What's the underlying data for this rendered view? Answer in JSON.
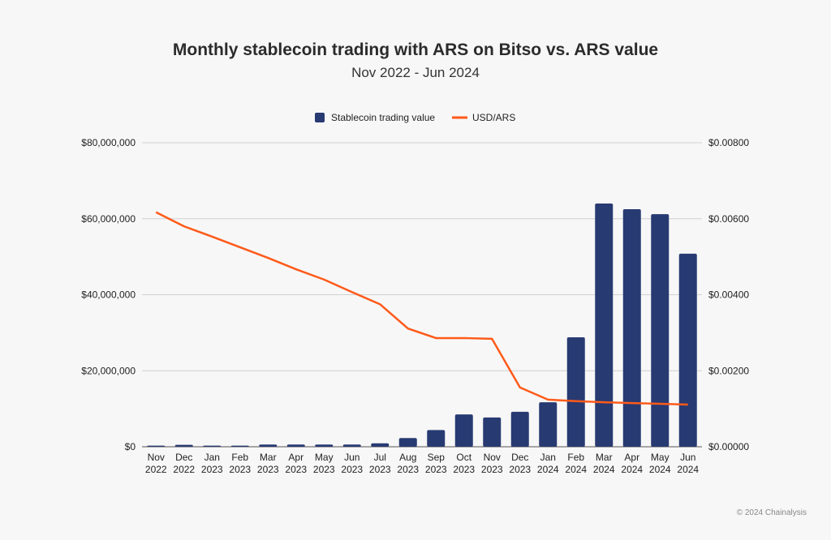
{
  "chart_data": {
    "type": "bar+line",
    "title": "Monthly stablecoin trading with ARS on Bitso vs. ARS value",
    "subtitle": "Nov 2022 - Jun 2024",
    "categories": [
      [
        "Nov",
        "2022"
      ],
      [
        "Dec",
        "2022"
      ],
      [
        "Jan",
        "2023"
      ],
      [
        "Feb",
        "2023"
      ],
      [
        "Mar",
        "2023"
      ],
      [
        "Apr",
        "2023"
      ],
      [
        "May",
        "2023"
      ],
      [
        "Jun",
        "2023"
      ],
      [
        "Jul",
        "2023"
      ],
      [
        "Aug",
        "2023"
      ],
      [
        "Sep",
        "2023"
      ],
      [
        "Oct",
        "2023"
      ],
      [
        "Nov",
        "2023"
      ],
      [
        "Dec",
        "2023"
      ],
      [
        "Jan",
        "2024"
      ],
      [
        "Feb",
        "2024"
      ],
      [
        "Mar",
        "2024"
      ],
      [
        "Apr",
        "2024"
      ],
      [
        "May",
        "2024"
      ],
      [
        "Jun",
        "2024"
      ]
    ],
    "series": [
      {
        "name": "Stablecoin trading value",
        "type": "bar",
        "axis": "left",
        "color": "#283a72",
        "values": [
          300000,
          500000,
          300000,
          300000,
          600000,
          600000,
          600000,
          600000,
          900000,
          2300000,
          4400000,
          8500000,
          7700000,
          9200000,
          11700000,
          28800000,
          64000000,
          62500000,
          61200000,
          50800000
        ]
      },
      {
        "name": "USD/ARS",
        "type": "line",
        "axis": "right",
        "color": "#ff5a1a",
        "values": [
          0.00617,
          0.0058,
          0.00553,
          0.00525,
          0.00497,
          0.00467,
          0.0044,
          0.00407,
          0.00375,
          0.00311,
          0.00286,
          0.00286,
          0.00284,
          0.00156,
          0.00124,
          0.0012,
          0.00117,
          0.00115,
          0.00113,
          0.00111
        ]
      }
    ],
    "y_left": {
      "lim": [
        0,
        80000000
      ],
      "ticks": [
        "$0",
        "$20,000,000",
        "$40,000,000",
        "$60,000,000",
        "$80,000,000"
      ]
    },
    "y_right": {
      "lim": [
        0,
        0.008
      ],
      "ticks": [
        "$0.00000",
        "$0.00200",
        "$0.00400",
        "$0.00600",
        "$0.00800"
      ]
    },
    "grid": true,
    "legend": "top-center"
  },
  "footer": {
    "credit": "© 2024 Chainalysis"
  }
}
